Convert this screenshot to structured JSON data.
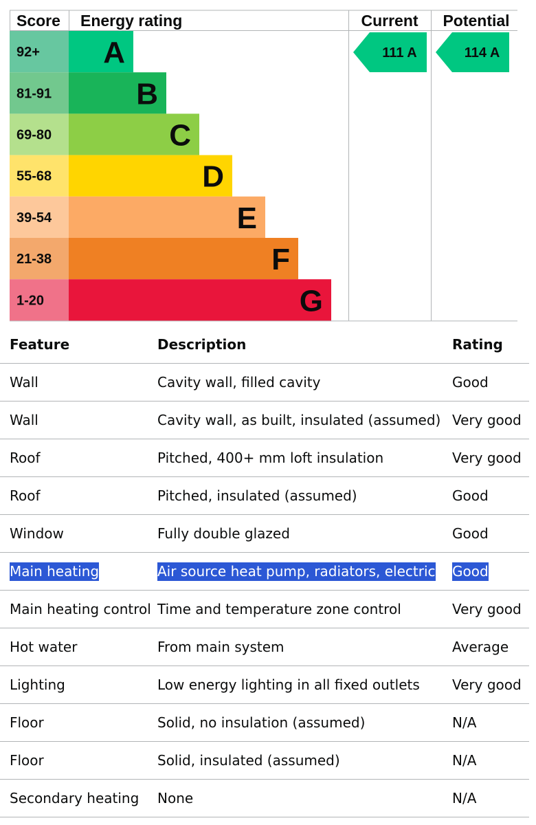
{
  "chart": {
    "headers": {
      "score": "Score",
      "energy_rating": "Energy rating",
      "current": "Current",
      "potential": "Potential"
    },
    "bands": [
      {
        "letter": "A",
        "range": "92+",
        "color": "#00c781",
        "score_color": "#67c7a0"
      },
      {
        "letter": "B",
        "range": "81-91",
        "color": "#19b459",
        "score_color": "#72c88e"
      },
      {
        "letter": "C",
        "range": "69-80",
        "color": "#8dce46",
        "score_color": "#b4e08d"
      },
      {
        "letter": "D",
        "range": "55-68",
        "color": "#ffd500",
        "score_color": "#ffe36b"
      },
      {
        "letter": "E",
        "range": "39-54",
        "color": "#fcaa65",
        "score_color": "#fdc89b"
      },
      {
        "letter": "F",
        "range": "21-38",
        "color": "#ef8023",
        "score_color": "#f3a86c"
      },
      {
        "letter": "G",
        "range": "1-20",
        "color": "#e9153b",
        "score_color": "#f07289"
      }
    ],
    "current": {
      "score": "111",
      "band": "A",
      "label": "111  A",
      "color": "#00c781"
    },
    "potential": {
      "score": "114",
      "band": "A",
      "label": "114  A",
      "color": "#00c781"
    },
    "grid_color": "#b1b4b6"
  },
  "table": {
    "headers": {
      "feature": "Feature",
      "description": "Description",
      "rating": "Rating"
    },
    "rows": [
      {
        "feature": "Wall",
        "description": "Cavity wall, filled cavity",
        "rating": "Good",
        "selected": false
      },
      {
        "feature": "Wall",
        "description": "Cavity wall, as built, insulated (assumed)",
        "rating": "Very good",
        "selected": false
      },
      {
        "feature": "Roof",
        "description": "Pitched, 400+ mm loft insulation",
        "rating": "Very good",
        "selected": false
      },
      {
        "feature": "Roof",
        "description": "Pitched, insulated (assumed)",
        "rating": "Good",
        "selected": false
      },
      {
        "feature": "Window",
        "description": "Fully double glazed",
        "rating": "Good",
        "selected": false
      },
      {
        "feature": "Main heating",
        "description": "Air source heat pump, radiators, electric",
        "rating": "Good",
        "selected": true
      },
      {
        "feature": "Main heating control",
        "description": "Time and temperature zone control",
        "rating": "Very good",
        "selected": false
      },
      {
        "feature": "Hot water",
        "description": "From main system",
        "rating": "Average",
        "selected": false
      },
      {
        "feature": "Lighting",
        "description": "Low energy lighting in all fixed outlets",
        "rating": "Very good",
        "selected": false
      },
      {
        "feature": "Floor",
        "description": "Solid, no insulation (assumed)",
        "rating": "N/A",
        "selected": false
      },
      {
        "feature": "Floor",
        "description": "Solid, insulated (assumed)",
        "rating": "N/A",
        "selected": false
      },
      {
        "feature": "Secondary heating",
        "description": "None",
        "rating": "N/A",
        "selected": false
      }
    ],
    "selection_color": "#2c58d5"
  }
}
